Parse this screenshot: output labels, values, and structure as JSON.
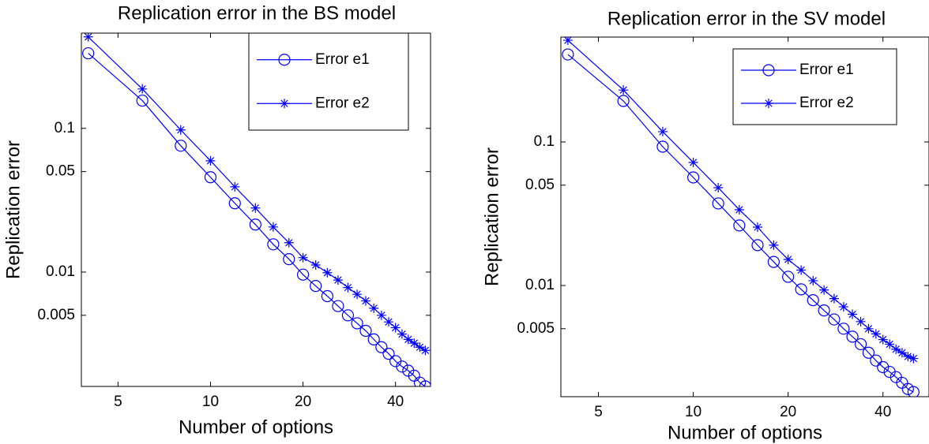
{
  "chart_data": [
    {
      "type": "line",
      "title": "Replication error in the BS model",
      "x_label": "Number of options",
      "y_label": "Replication error",
      "x": [
        4,
        6,
        8,
        10,
        12,
        14,
        16,
        18,
        20,
        22,
        24,
        26,
        28,
        30,
        32,
        34,
        36,
        38,
        40,
        42,
        44,
        46,
        48,
        50
      ],
      "series": [
        {
          "name": "Error e1",
          "color": "#0000ff",
          "marker": "circle",
          "values": [
            0.333,
            0.156,
            0.0757,
            0.0457,
            0.0301,
            0.0214,
            0.0156,
            0.0123,
            0.0096,
            0.008,
            0.0068,
            0.0058,
            0.005,
            0.0044,
            0.0039,
            0.0034,
            0.003,
            0.0027,
            0.0024,
            0.0022,
            0.00206,
            0.0019,
            0.0017,
            0.0016
          ]
        },
        {
          "name": "Error e2",
          "color": "#0000ff",
          "marker": "star",
          "values": [
            0.433,
            0.188,
            0.0975,
            0.0595,
            0.0392,
            0.0279,
            0.0206,
            0.016,
            0.0126,
            0.0112,
            0.0099,
            0.0088,
            0.0078,
            0.007,
            0.0063,
            0.0056,
            0.005,
            0.0045,
            0.0041,
            0.0037,
            0.0034,
            0.0032,
            0.003,
            0.00285
          ]
        }
      ],
      "xscale": "log",
      "yscale": "log",
      "xlim": [
        3.8,
        52
      ],
      "ylim": [
        0.0016,
        0.46
      ],
      "xticks": [
        5,
        10,
        20,
        40
      ],
      "yticks": [
        0.005,
        0.01,
        0.05,
        0.1
      ],
      "legend": "upper right"
    },
    {
      "type": "line",
      "title": "Replication error in the SV model",
      "x_label": "Number of options",
      "y_label": "Replication error",
      "x": [
        4,
        6,
        8,
        10,
        12,
        14,
        16,
        18,
        20,
        22,
        24,
        26,
        28,
        30,
        32,
        34,
        36,
        38,
        40,
        42,
        44,
        46,
        48,
        50
      ],
      "series": [
        {
          "name": "Error e1",
          "color": "#0000ff",
          "marker": "circle",
          "values": [
            0.407,
            0.193,
            0.0927,
            0.0566,
            0.0373,
            0.0262,
            0.0191,
            0.0146,
            0.0115,
            0.0094,
            0.0079,
            0.0067,
            0.0058,
            0.005,
            0.0044,
            0.0039,
            0.0034,
            0.003,
            0.0027,
            0.0025,
            0.0023,
            0.0021,
            0.0019,
            0.00181
          ]
        },
        {
          "name": "Error e2",
          "color": "#0000ff",
          "marker": "star",
          "values": [
            0.511,
            0.23,
            0.118,
            0.072,
            0.048,
            0.0337,
            0.0255,
            0.0191,
            0.0152,
            0.0128,
            0.0108,
            0.0093,
            0.0081,
            0.0071,
            0.0063,
            0.0056,
            0.005,
            0.0046,
            0.0042,
            0.0039,
            0.0036,
            0.0034,
            0.0032,
            0.0031
          ]
        }
      ],
      "xscale": "log",
      "yscale": "log",
      "xlim": [
        3.8,
        56
      ],
      "ylim": [
        0.00168,
        0.538
      ],
      "xticks": [
        5,
        10,
        20,
        40
      ],
      "yticks": [
        0.005,
        0.01,
        0.05,
        0.1
      ],
      "legend": "upper right"
    }
  ]
}
